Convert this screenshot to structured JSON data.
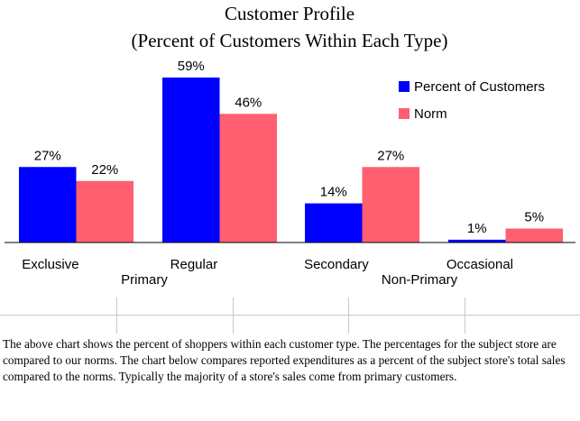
{
  "chart_data": {
    "type": "bar",
    "title": "Customer Profile",
    "subtitle": "(Percent of Customers Within Each Type)",
    "categories": [
      "Exclusive",
      "Regular",
      "Secondary",
      "Occasional"
    ],
    "groups": [
      {
        "label": "Primary",
        "categories": [
          "Exclusive",
          "Regular"
        ]
      },
      {
        "label": "Non-Primary",
        "categories": [
          "Secondary",
          "Occasional"
        ]
      }
    ],
    "series": [
      {
        "name": "Percent of Customers",
        "color": "#0000ff",
        "values": [
          27,
          59,
          14,
          1
        ]
      },
      {
        "name": "Norm",
        "color": "#ff5f6f",
        "values": [
          22,
          46,
          27,
          5
        ]
      }
    ],
    "value_suffix": "%",
    "ylim": [
      0,
      59
    ],
    "legend": "top-right",
    "grid": false
  },
  "paragraph": "The above chart shows the percent of shoppers within each customer type.  The percentages for the subject store are compared to our norms.  The chart below compares reported expenditures as a percent of the subject store's total sales compared to the norms.  Typically the majority of a store's sales come from primary customers."
}
